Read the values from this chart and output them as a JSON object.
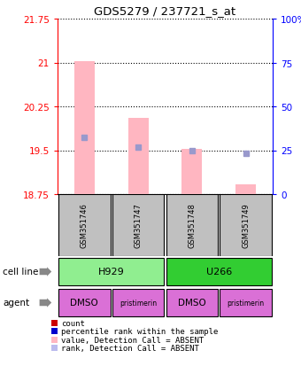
{
  "title": "GDS5279 / 237721_s_at",
  "samples": [
    "GSM351746",
    "GSM351747",
    "GSM351748",
    "GSM351749"
  ],
  "ylim": [
    18.75,
    21.75
  ],
  "y2lim": [
    0,
    100
  ],
  "yticks": [
    18.75,
    19.5,
    20.25,
    21.0,
    21.75
  ],
  "ytick_labels": [
    "18.75",
    "19.5",
    "20.25",
    "21",
    "21.75"
  ],
  "y2ticks": [
    0,
    25,
    50,
    75,
    100
  ],
  "y2tick_labels": [
    "0",
    "25",
    "50",
    "75",
    "100%"
  ],
  "bar_bottoms": [
    18.75,
    18.75,
    18.75,
    18.75
  ],
  "bar_tops": [
    21.02,
    20.05,
    19.52,
    18.92
  ],
  "rank_values": [
    19.72,
    19.56,
    19.5,
    19.44
  ],
  "bar_color": "#FFB6C1",
  "rank_color": "#9999CC",
  "cell_line_unique": [
    "H929",
    "U266"
  ],
  "cell_line_spans": [
    [
      0,
      2
    ],
    [
      2,
      4
    ]
  ],
  "cell_line_bg": [
    "#90EE90",
    "#32CD32"
  ],
  "agents": [
    "DMSO",
    "pristimerin",
    "DMSO",
    "pristimerin"
  ],
  "agent_color": "#DA70D6",
  "legend_items": [
    {
      "color": "#CC0000",
      "label": "count"
    },
    {
      "color": "#0000CC",
      "label": "percentile rank within the sample"
    },
    {
      "color": "#FFB6C1",
      "label": "value, Detection Call = ABSENT"
    },
    {
      "color": "#BBBBEE",
      "label": "rank, Detection Call = ABSENT"
    }
  ]
}
